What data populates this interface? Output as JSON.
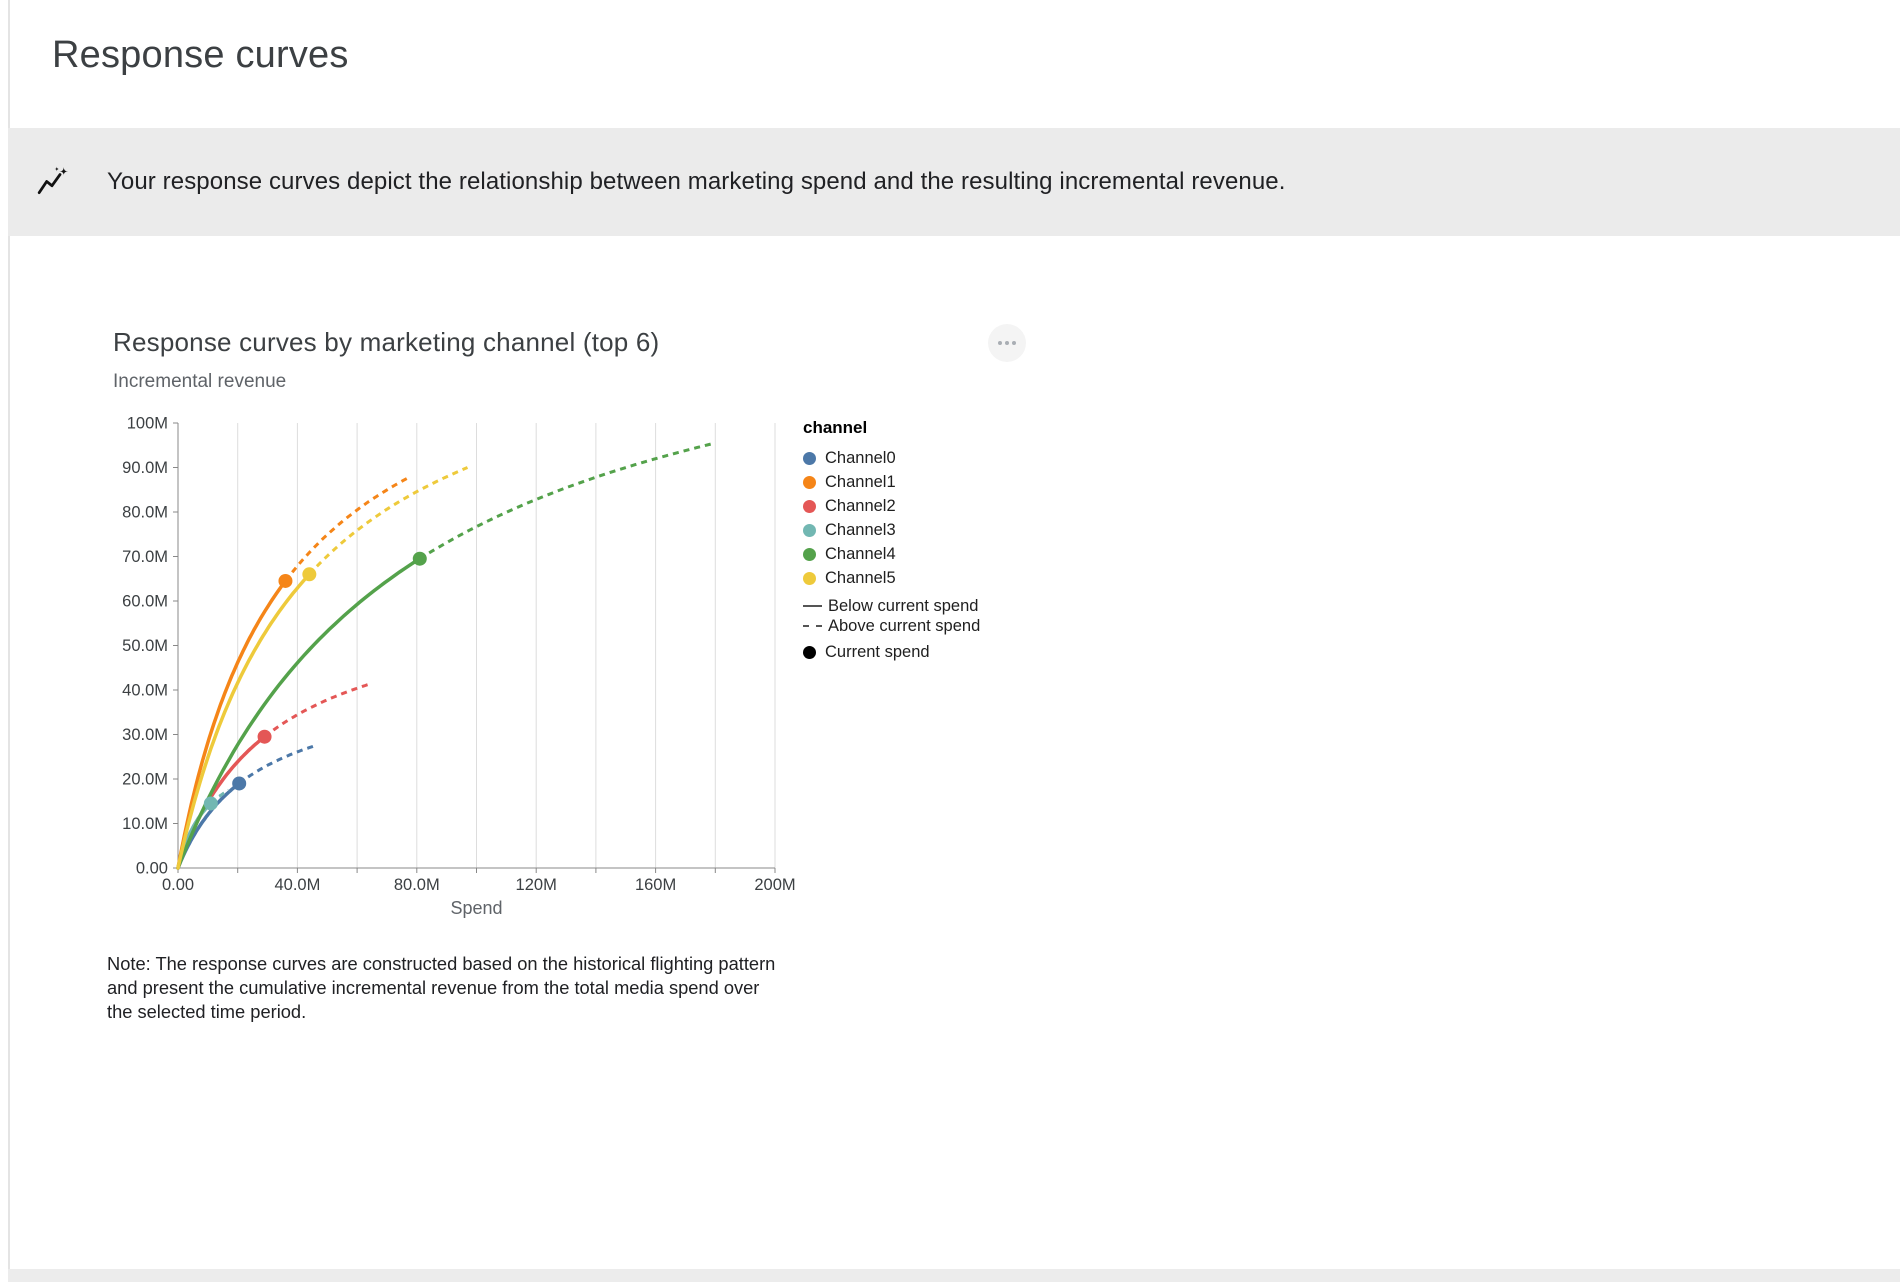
{
  "page": {
    "title": "Response curves"
  },
  "banner": {
    "icon": "insights-icon",
    "text": "Your response curves depict the relationship between marketing spend and the resulting incremental revenue."
  },
  "chart": {
    "note": "Note: The response curves are constructed based on the historical flighting pattern and present the cumulative incremental revenue from the total media spend over the selected time period."
  },
  "chart_data": {
    "type": "line",
    "title": "Response curves by marketing channel (top 6)",
    "ylabel": "Incremental revenue",
    "xlabel": "Spend",
    "x_domain_m": [
      0,
      200
    ],
    "y_domain_m": [
      0,
      100
    ],
    "x_grid_step_m": 20,
    "x_ticks": [
      {
        "v": 0,
        "label": "0.00"
      },
      {
        "v": 40,
        "label": "40.0M"
      },
      {
        "v": 80,
        "label": "80.0M"
      },
      {
        "v": 120,
        "label": "120M"
      },
      {
        "v": 160,
        "label": "160M"
      },
      {
        "v": 200,
        "label": "200M"
      }
    ],
    "y_ticks": [
      {
        "v": 0,
        "label": "0.00"
      },
      {
        "v": 10,
        "label": "10.0M"
      },
      {
        "v": 20,
        "label": "20.0M"
      },
      {
        "v": 30,
        "label": "30.0M"
      },
      {
        "v": 40,
        "label": "40.0M"
      },
      {
        "v": 50,
        "label": "50.0M"
      },
      {
        "v": 60,
        "label": "60.0M"
      },
      {
        "v": 70,
        "label": "70.0M"
      },
      {
        "v": 80,
        "label": "80.0M"
      },
      {
        "v": 90,
        "label": "90.0M"
      },
      {
        "v": 100,
        "label": "100M"
      }
    ],
    "legend_title": "channel",
    "series": [
      {
        "name": "Channel0",
        "color": "#4c78a8",
        "current_spend_m": 20.5,
        "current_revenue_m": 19,
        "max_spend_m": 46,
        "max_revenue_m": 27.5
      },
      {
        "name": "Channel1",
        "color": "#f58518",
        "current_spend_m": 36,
        "current_revenue_m": 64.5,
        "max_spend_m": 78,
        "max_revenue_m": 88
      },
      {
        "name": "Channel2",
        "color": "#e45756",
        "current_spend_m": 29,
        "current_revenue_m": 29.5,
        "max_spend_m": 65,
        "max_revenue_m": 41.5
      },
      {
        "name": "Channel3",
        "color": "#72b7b2",
        "current_spend_m": 11,
        "current_revenue_m": 14.5,
        "max_spend_m": 17,
        "max_revenue_m": 17.5
      },
      {
        "name": "Channel4",
        "color": "#54a24b",
        "current_spend_m": 81,
        "current_revenue_m": 69.5,
        "max_spend_m": 180,
        "max_revenue_m": 95.5
      },
      {
        "name": "Channel5",
        "color": "#eeca3b",
        "current_spend_m": 44,
        "current_revenue_m": 66,
        "max_spend_m": 97,
        "max_revenue_m": 90
      }
    ],
    "style_legend": [
      {
        "label": "Below current spend",
        "style": "solid"
      },
      {
        "label": "Above current spend",
        "style": "dashed"
      },
      {
        "label": "Current spend",
        "style": "dot"
      }
    ]
  }
}
